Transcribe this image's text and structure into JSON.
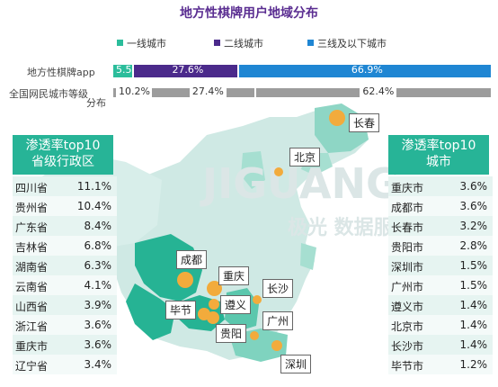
{
  "chart_data": {
    "type": "bar",
    "title": "地方性棋牌用户地域分布",
    "legend": [
      "一线城市",
      "二线城市",
      "三线及以下城市"
    ],
    "colors": {
      "tier1": "#2bbd9b",
      "tier2": "#4b2a8b",
      "tier3": "#1f86d3",
      "grey": "#9c9c9c"
    },
    "bars": [
      {
        "label": "地方性棋牌app",
        "values": [
          5.5,
          27.6,
          66.9
        ],
        "texts": [
          "5.5%",
          "27.6%",
          "66.9%"
        ]
      },
      {
        "label_line1": "全国网民城市等级",
        "label_line2": "分布",
        "values": [
          10.2,
          27.4,
          62.4
        ],
        "texts": [
          "10.2%",
          "27.4%",
          "62.4%"
        ]
      }
    ],
    "provinces": {
      "header_line1": "渗透率top10",
      "header_line2": "省级行政区",
      "rows": [
        {
          "name": "四川省",
          "value": "11.1%"
        },
        {
          "name": "贵州省",
          "value": "10.4%"
        },
        {
          "name": "广东省",
          "value": "8.4%"
        },
        {
          "name": "吉林省",
          "value": "6.8%"
        },
        {
          "name": "湖南省",
          "value": "6.3%"
        },
        {
          "name": "云南省",
          "value": "4.1%"
        },
        {
          "name": "山西省",
          "value": "3.9%"
        },
        {
          "name": "浙江省",
          "value": "3.6%"
        },
        {
          "name": "重庆市",
          "value": "3.6%"
        },
        {
          "name": "辽宁省",
          "value": "3.4%"
        }
      ]
    },
    "cities": {
      "header_line1": "渗透率top10",
      "header_line2": "城市",
      "rows": [
        {
          "name": "重庆市",
          "value": "3.6%"
        },
        {
          "name": "成都市",
          "value": "3.6%"
        },
        {
          "name": "长春市",
          "value": "3.2%"
        },
        {
          "name": "贵阳市",
          "value": "2.8%"
        },
        {
          "name": "深圳市",
          "value": "1.5%"
        },
        {
          "name": "广州市",
          "value": "1.5%"
        },
        {
          "name": "遵义市",
          "value": "1.4%"
        },
        {
          "name": "北京市",
          "value": "1.4%"
        },
        {
          "name": "长沙市",
          "value": "1.4%"
        },
        {
          "name": "毕节市",
          "value": "1.2%"
        }
      ]
    },
    "map_labels": [
      "长春",
      "北京",
      "成都",
      "重庆",
      "长沙",
      "遵义",
      "毕节",
      "广州",
      "贵阳",
      "深圳"
    ],
    "watermark": "JIGUANG",
    "watermark2": "极光 数据服务"
  }
}
